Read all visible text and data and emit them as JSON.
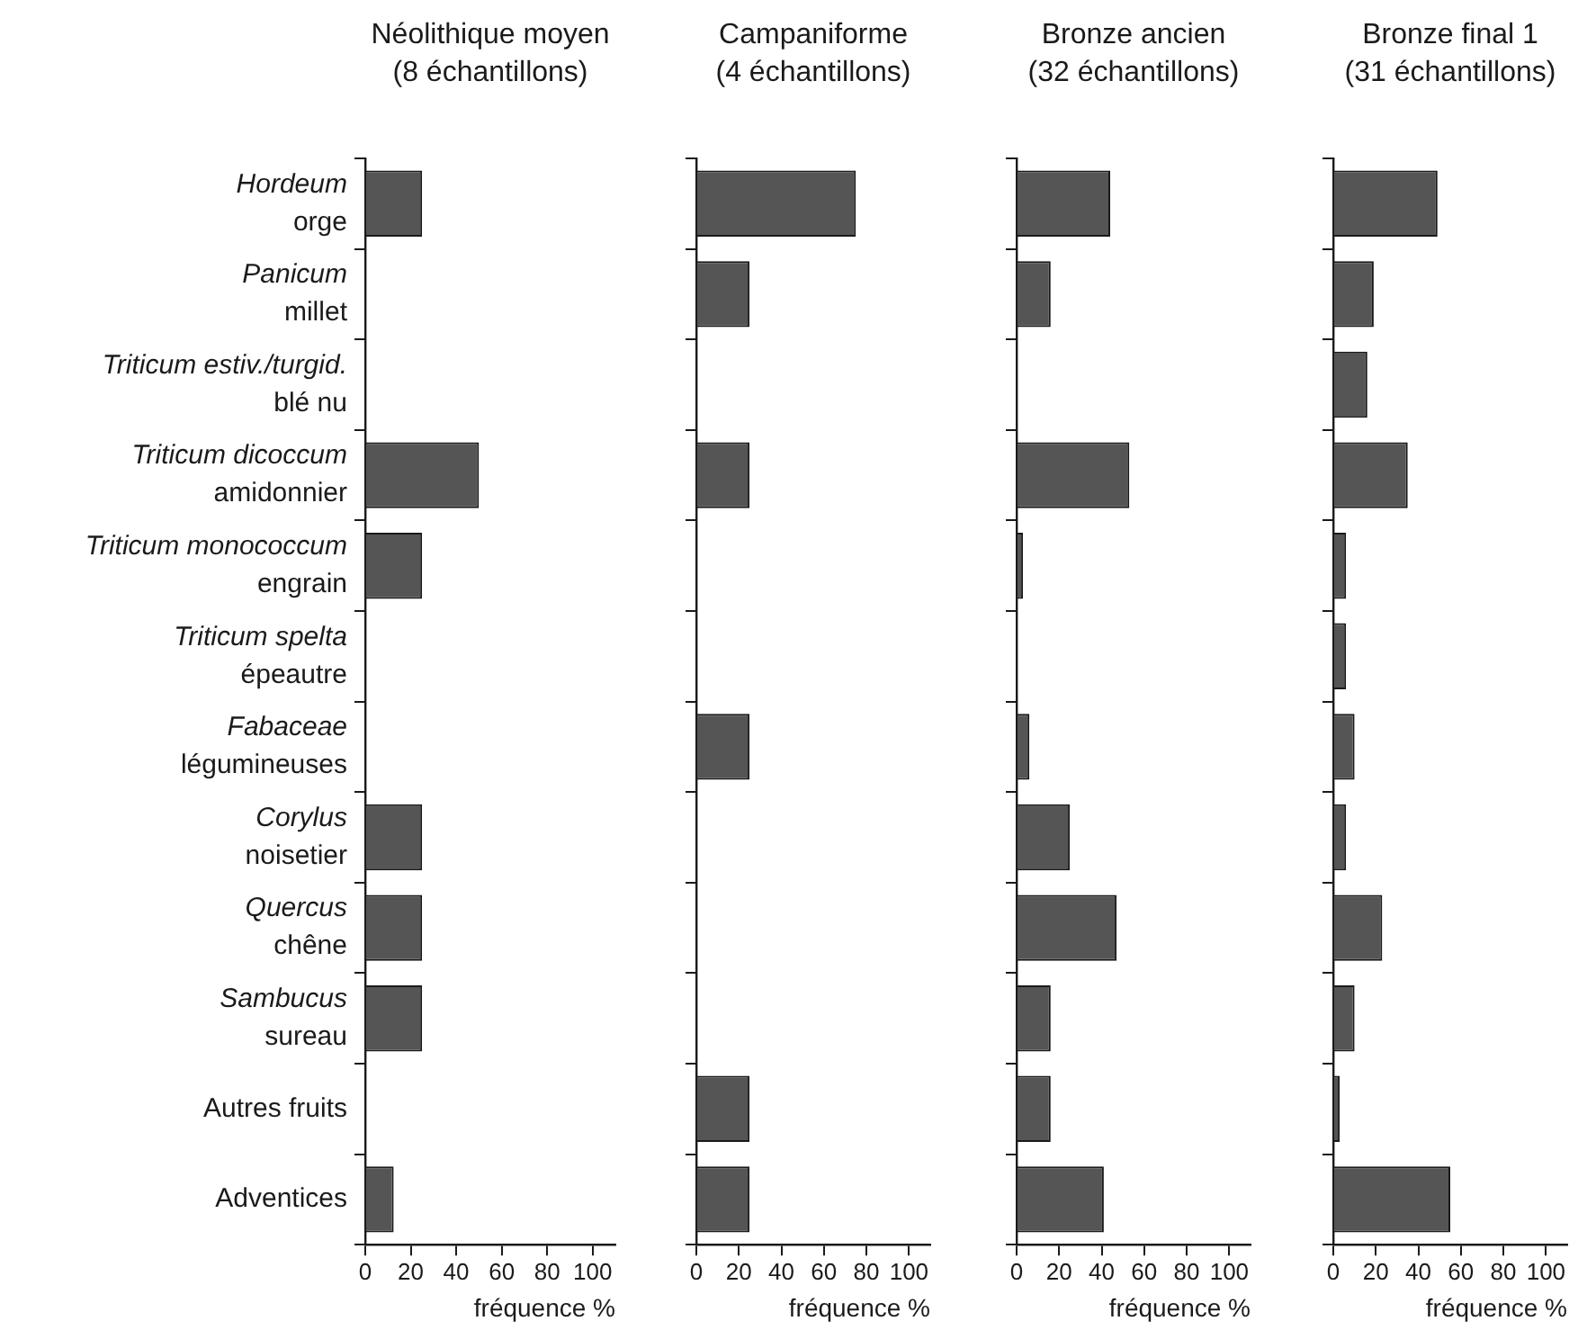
{
  "chart_data": [
    {
      "type": "bar",
      "orientation": "horizontal",
      "title": "Néolithique moyen\n(8 échantillons)",
      "xlabel": "fréquence %",
      "categories": [
        "Hordeum\norge",
        "Panicum\nmillet",
        "Triticum estiv./turgid.\nblé nu",
        "Triticum dicoccum\namidonnier",
        "Triticum monococcum\nengrain",
        "Triticum spelta\népeautre",
        "Fabaceae\nlégumineuses",
        "Corylus\nnoisetier",
        "Quercus\nchêne",
        "Sambucus\nsureau",
        "Autres fruits",
        "Adventices"
      ],
      "values": [
        25,
        0,
        0,
        50,
        25,
        0,
        0,
        25,
        25,
        25,
        0,
        12.5
      ],
      "color": "#555555",
      "xlim": [
        0,
        110
      ],
      "xticks": [
        0,
        20,
        40,
        60,
        80,
        100
      ]
    },
    {
      "type": "bar",
      "orientation": "horizontal",
      "title": "Campaniforme\n(4 échantillons)",
      "xlabel": "fréquence %",
      "categories": [
        null,
        null,
        null,
        null,
        null,
        null,
        null,
        null,
        null,
        null,
        null,
        null
      ],
      "values": [
        75,
        25,
        0,
        25,
        0,
        0,
        25,
        0,
        0,
        0,
        25,
        25
      ],
      "color": "#555555",
      "xlim": [
        0,
        110
      ],
      "xticks": [
        0,
        20,
        40,
        60,
        80,
        100
      ],
      "tick_labels": "x"
    },
    {
      "type": "bar",
      "orientation": "horizontal",
      "title": "Bronze ancien\n(32 échantillons)",
      "xlabel": "fréquence %",
      "categories": [
        null,
        null,
        null,
        null,
        null,
        null,
        null,
        null,
        null,
        null,
        null,
        null
      ],
      "values": [
        44,
        16,
        0,
        53,
        3,
        0,
        6,
        25,
        47,
        16,
        16,
        41
      ],
      "color": "#555555",
      "xlim": [
        0,
        110
      ],
      "xticks": [
        0,
        20,
        40,
        60,
        80,
        100
      ],
      "tick_labels": "x"
    },
    {
      "type": "bar",
      "orientation": "horizontal",
      "title": "Bronze final 1\n(31 échantillons)",
      "xlabel": "fréquence %",
      "categories": [
        null,
        null,
        null,
        null,
        null,
        null,
        null,
        null,
        null,
        null,
        null,
        null
      ],
      "values": [
        49,
        19,
        16,
        35,
        6,
        6,
        10,
        6,
        23,
        10,
        3,
        55
      ],
      "color": "#555555",
      "xlim": [
        0,
        110
      ],
      "xticks": [
        0,
        20,
        40,
        60,
        80,
        100
      ],
      "tick_labels": "x"
    }
  ]
}
